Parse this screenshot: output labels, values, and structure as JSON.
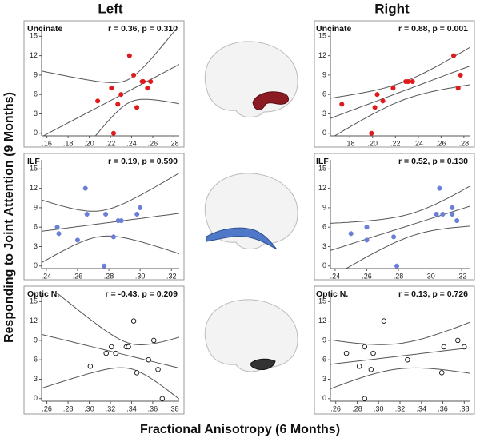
{
  "columns": [
    "Left",
    "Right"
  ],
  "xlabel": "Fractional Anisotropy (6 Months)",
  "ylabel": "Responding to Joint Attention (9 Months)",
  "chart_data": [
    {
      "type": "scatter",
      "tract": "Uncinate",
      "stat": "r = 0.36, p = 0.310",
      "color": "#e0191b",
      "marker": "filled",
      "x": [
        0.208,
        0.221,
        0.223,
        0.227,
        0.23,
        0.238,
        0.242,
        0.245,
        0.25,
        0.251,
        0.255,
        0.258
      ],
      "values": [
        5,
        7,
        0,
        4.5,
        6,
        12,
        9,
        4,
        8,
        8,
        7,
        8
      ],
      "xlim": [
        0.155,
        0.285
      ],
      "ylim": [
        -0.4,
        16.4
      ],
      "xticks": [
        {
          "value": 0.16,
          "label": ".16"
        },
        {
          "value": 0.18,
          "label": ".18"
        },
        {
          "value": 0.2,
          "label": ".20"
        },
        {
          "value": 0.22,
          "label": ".22"
        },
        {
          "value": 0.24,
          "label": ".24"
        },
        {
          "value": 0.26,
          "label": ".26"
        },
        {
          "value": 0.28,
          "label": ".28"
        }
      ],
      "yticks": [
        0,
        3,
        6,
        9,
        12,
        15
      ]
    },
    {
      "type": "scatter",
      "tract": "Uncinate",
      "stat": "r = 0.88, p = 0.001",
      "color": "#e0191b",
      "marker": "filled",
      "x": [
        0.173,
        0.199,
        0.202,
        0.204,
        0.209,
        0.218,
        0.229,
        0.231,
        0.235,
        0.271,
        0.275,
        0.277
      ],
      "values": [
        4.5,
        0,
        4,
        6,
        5,
        7,
        8,
        8,
        8,
        12,
        7,
        9
      ],
      "xlim": [
        0.163,
        0.285
      ],
      "ylim": [
        -0.4,
        16.4
      ],
      "xticks": [
        {
          "value": 0.18,
          "label": ".18"
        },
        {
          "value": 0.2,
          "label": ".20"
        },
        {
          "value": 0.22,
          "label": ".22"
        },
        {
          "value": 0.24,
          "label": ".24"
        },
        {
          "value": 0.26,
          "label": ".26"
        },
        {
          "value": 0.28,
          "label": ".28"
        }
      ],
      "yticks": [
        0,
        3,
        6,
        9,
        12,
        15
      ]
    },
    {
      "type": "scatter",
      "tract": "ILF",
      "stat": "r = 0.19, p = 0.590",
      "color": "#6a7fd8",
      "marker": "filled",
      "x": [
        0.247,
        0.248,
        0.26,
        0.265,
        0.266,
        0.278,
        0.277,
        0.283,
        0.286,
        0.288,
        0.298,
        0.3
      ],
      "values": [
        6,
        5,
        4,
        12,
        8,
        8,
        0,
        4.5,
        7,
        7,
        8,
        9
      ],
      "xlim": [
        0.237,
        0.325
      ],
      "ylim": [
        -0.4,
        16.4
      ],
      "xticks": [
        {
          "value": 0.24,
          "label": ".24"
        },
        {
          "value": 0.26,
          "label": ".26"
        },
        {
          "value": 0.28,
          "label": ".28"
        },
        {
          "value": 0.3,
          "label": ".30"
        },
        {
          "value": 0.32,
          "label": ".32"
        }
      ],
      "yticks": [
        0,
        3,
        6,
        9,
        12,
        15
      ]
    },
    {
      "type": "scatter",
      "tract": "ILF",
      "stat": "r = 0.52, p = 0.130",
      "color": "#6a7fd8",
      "marker": "filled",
      "x": [
        0.25,
        0.26,
        0.26,
        0.277,
        0.279,
        0.304,
        0.306,
        0.308,
        0.314,
        0.314,
        0.317
      ],
      "values": [
        5,
        6,
        4,
        4.5,
        0,
        8,
        12,
        8,
        9,
        8,
        7
      ],
      "xlim": [
        0.237,
        0.325
      ],
      "ylim": [
        -0.4,
        16.4
      ],
      "xticks": [
        {
          "value": 0.24,
          "label": ".24"
        },
        {
          "value": 0.26,
          "label": ".26"
        },
        {
          "value": 0.28,
          "label": ".28"
        },
        {
          "value": 0.3,
          "label": ".30"
        },
        {
          "value": 0.32,
          "label": ".32"
        }
      ],
      "yticks": [
        0,
        3,
        6,
        9,
        12,
        15
      ]
    },
    {
      "type": "scatter",
      "tract": "Optic N.",
      "stat": "r = -0.43, p = 0.209",
      "color": "#111111",
      "marker": "open",
      "x": [
        0.301,
        0.316,
        0.321,
        0.325,
        0.335,
        0.337,
        0.342,
        0.345,
        0.356,
        0.361,
        0.365,
        0.369
      ],
      "values": [
        5,
        7,
        8,
        7,
        8,
        8,
        12,
        4,
        6,
        9,
        4.5,
        0
      ],
      "xlim": [
        0.255,
        0.385
      ],
      "ylim": [
        -0.4,
        16.4
      ],
      "xticks": [
        {
          "value": 0.26,
          "label": ".26"
        },
        {
          "value": 0.28,
          "label": ".28"
        },
        {
          "value": 0.3,
          "label": ".30"
        },
        {
          "value": 0.32,
          "label": ".32"
        },
        {
          "value": 0.34,
          "label": ".34"
        },
        {
          "value": 0.36,
          "label": ".36"
        },
        {
          "value": 0.38,
          "label": ".38"
        }
      ],
      "yticks": [
        0,
        3,
        6,
        9,
        12,
        15
      ]
    },
    {
      "type": "scatter",
      "tract": "Optic N.",
      "stat": "r = 0.13, p = 0.726",
      "color": "#111111",
      "marker": "open",
      "x": [
        0.27,
        0.282,
        0.287,
        0.287,
        0.293,
        0.295,
        0.305,
        0.327,
        0.361,
        0.359,
        0.374,
        0.38
      ],
      "values": [
        7,
        5,
        8,
        0,
        4.5,
        7,
        12,
        6,
        8,
        4,
        9,
        8
      ],
      "xlim": [
        0.255,
        0.385
      ],
      "ylim": [
        -0.4,
        16.4
      ],
      "xticks": [
        {
          "value": 0.26,
          "label": ".26"
        },
        {
          "value": 0.28,
          "label": ".28"
        },
        {
          "value": 0.3,
          "label": ".30"
        },
        {
          "value": 0.32,
          "label": ".32"
        },
        {
          "value": 0.34,
          "label": ".34"
        },
        {
          "value": 0.36,
          "label": ".36"
        },
        {
          "value": 0.38,
          "label": ".38"
        }
      ],
      "yticks": [
        0,
        3,
        6,
        9,
        12,
        15
      ]
    }
  ]
}
